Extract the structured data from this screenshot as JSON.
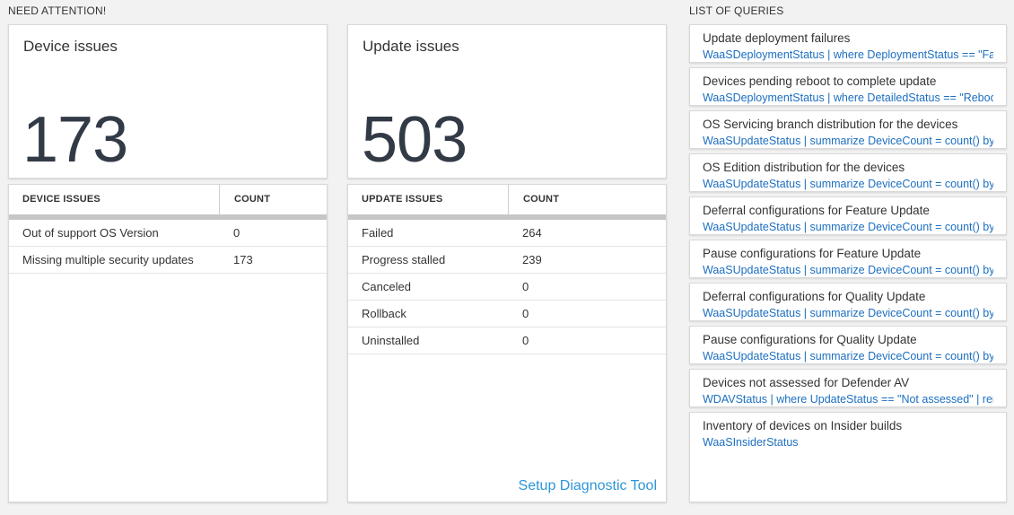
{
  "sections": {
    "need_attention": {
      "label": "NEED ATTENTION!"
    },
    "list_of_queries": {
      "label": "LIST OF QUERIES"
    }
  },
  "device_issues": {
    "title": "Device issues",
    "total": "173",
    "table": {
      "headers": [
        "DEVICE ISSUES",
        "COUNT"
      ],
      "rows": [
        {
          "label": "Out of support OS Version",
          "count": "0"
        },
        {
          "label": "Missing multiple security updates",
          "count": "173"
        }
      ]
    }
  },
  "update_issues": {
    "title": "Update issues",
    "total": "503",
    "table": {
      "headers": [
        "UPDATE ISSUES",
        "COUNT"
      ],
      "rows": [
        {
          "label": "Failed",
          "count": "264"
        },
        {
          "label": "Progress stalled",
          "count": "239"
        },
        {
          "label": "Canceled",
          "count": "0"
        },
        {
          "label": "Rollback",
          "count": "0"
        },
        {
          "label": "Uninstalled",
          "count": "0"
        }
      ]
    },
    "link_label": "Setup Diagnostic Tool"
  },
  "queries": [
    {
      "title": "Update deployment failures",
      "query": "WaaSDeploymentStatus | where DeploymentStatus == \"Failed\" |..."
    },
    {
      "title": "Devices pending reboot to complete update",
      "query": "WaaSDeploymentStatus | where DetailedStatus == \"Reboot pend..."
    },
    {
      "title": "OS Servicing branch distribution for the devices",
      "query": "WaaSUpdateStatus | summarize DeviceCount = count() by OSSer..."
    },
    {
      "title": "OS Edition distribution for the devices",
      "query": "WaaSUpdateStatus | summarize DeviceCount = count() by OSEdit..."
    },
    {
      "title": "Deferral configurations for Feature Update",
      "query": "WaaSUpdateStatus | summarize DeviceCount = count() by Featur..."
    },
    {
      "title": "Pause configurations for Feature Update",
      "query": "WaaSUpdateStatus | summarize DeviceCount = count() by Featur..."
    },
    {
      "title": "Deferral configurations for Quality Update",
      "query": "WaaSUpdateStatus | summarize DeviceCount = count() by Qualit..."
    },
    {
      "title": "Pause configurations for Quality Update",
      "query": "WaaSUpdateStatus | summarize DeviceCount = count() by Qualit..."
    },
    {
      "title": "Devices not assessed for Defender AV",
      "query": "WDAVStatus | where UpdateStatus == \"Not assessed\" | render ta..."
    },
    {
      "title": "Inventory of devices on Insider builds",
      "query": "WaaSInsiderStatus"
    }
  ],
  "colors": {
    "bg": "#f2f2f2",
    "text": "#333333",
    "number": "#323a46",
    "query_blue": "#1c6fc0",
    "link_blue": "#2e95d8",
    "bar": "#c6c6c6",
    "tile_border": "#d9d9d9",
    "row_border": "#e4e4e4"
  }
}
